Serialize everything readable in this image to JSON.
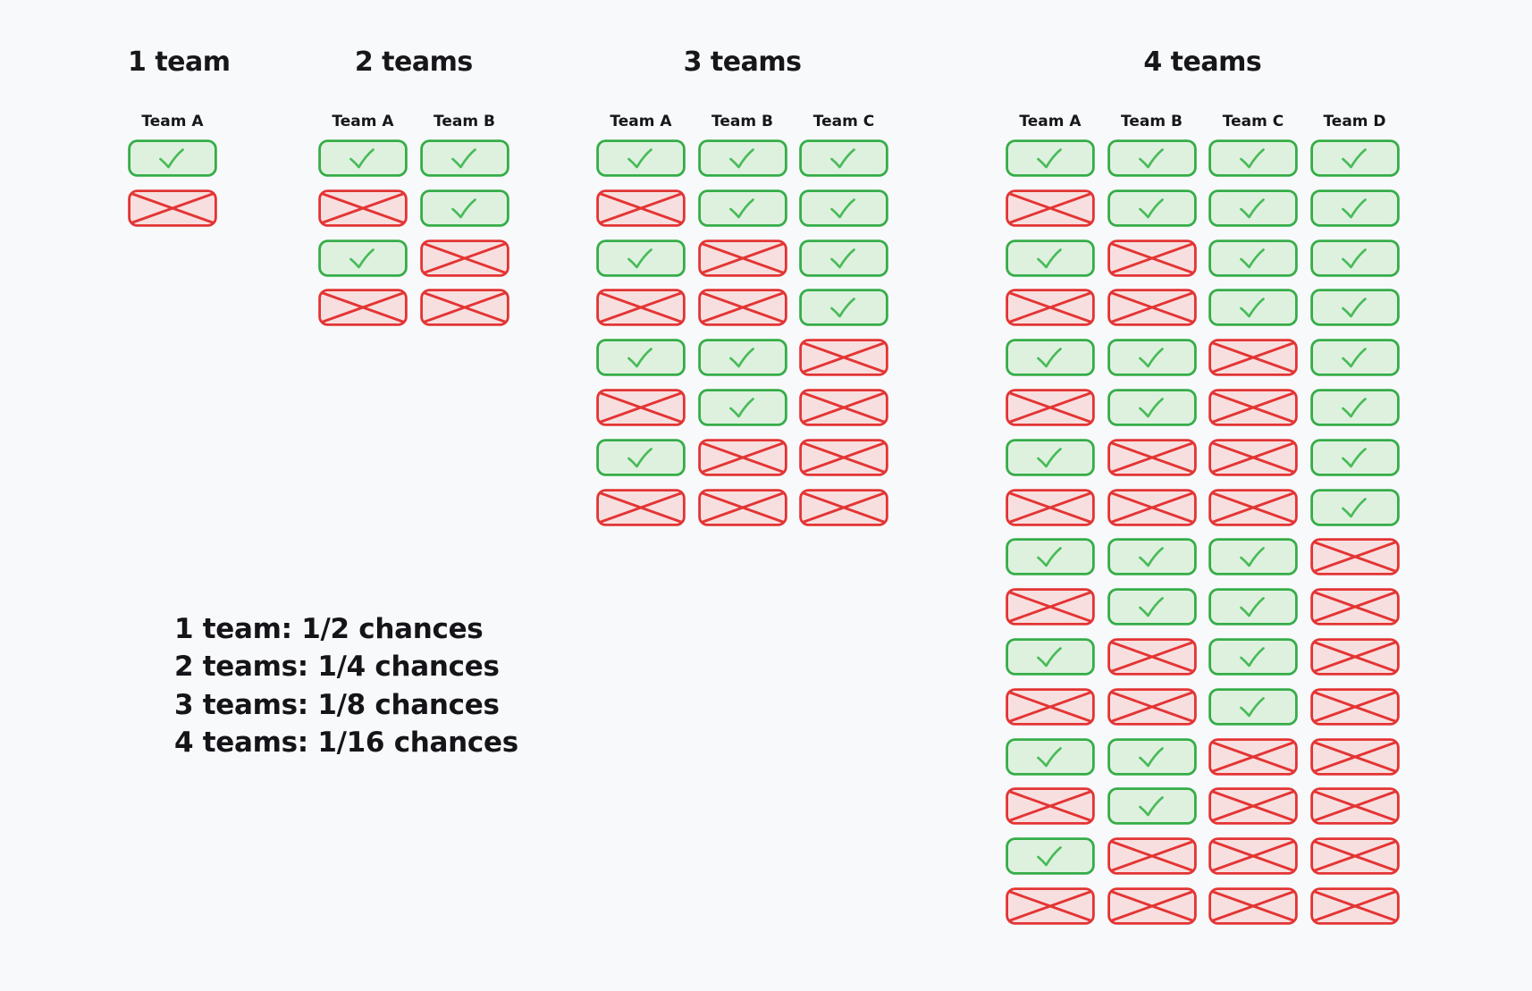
{
  "diagram": {
    "background": "#f8f9fb",
    "text_color": "#17171b"
  },
  "colors": {
    "win_border": "#35ad48",
    "win_fill": "#def1de",
    "win_check": "#48bb59",
    "lose_border": "#e33434",
    "lose_fill": "#f8dfdf"
  },
  "groups": [
    {
      "title": "1 team",
      "teams": [
        "Team A"
      ],
      "rows": [
        [
          "win"
        ],
        [
          "lose"
        ]
      ]
    },
    {
      "title": "2 teams",
      "teams": [
        "Team A",
        "Team B"
      ],
      "rows": [
        [
          "win",
          "win"
        ],
        [
          "lose",
          "win"
        ],
        [
          "win",
          "lose"
        ],
        [
          "lose",
          "lose"
        ]
      ]
    },
    {
      "title": "3 teams",
      "teams": [
        "Team A",
        "Team B",
        "Team C"
      ],
      "rows": [
        [
          "win",
          "win",
          "win"
        ],
        [
          "lose",
          "win",
          "win"
        ],
        [
          "win",
          "lose",
          "win"
        ],
        [
          "lose",
          "lose",
          "win"
        ],
        [
          "win",
          "win",
          "lose"
        ],
        [
          "lose",
          "win",
          "lose"
        ],
        [
          "win",
          "lose",
          "lose"
        ],
        [
          "lose",
          "lose",
          "lose"
        ]
      ]
    },
    {
      "title": "4 teams",
      "teams": [
        "Team A",
        "Team B",
        "Team C",
        "Team D"
      ],
      "rows": [
        [
          "win",
          "win",
          "win",
          "win"
        ],
        [
          "lose",
          "win",
          "win",
          "win"
        ],
        [
          "win",
          "lose",
          "win",
          "win"
        ],
        [
          "lose",
          "lose",
          "win",
          "win"
        ],
        [
          "win",
          "win",
          "lose",
          "win"
        ],
        [
          "lose",
          "win",
          "lose",
          "win"
        ],
        [
          "win",
          "lose",
          "lose",
          "win"
        ],
        [
          "lose",
          "lose",
          "lose",
          "win"
        ],
        [
          "win",
          "win",
          "win",
          "lose"
        ],
        [
          "lose",
          "win",
          "win",
          "lose"
        ],
        [
          "win",
          "lose",
          "win",
          "lose"
        ],
        [
          "lose",
          "lose",
          "win",
          "lose"
        ],
        [
          "win",
          "win",
          "lose",
          "lose"
        ],
        [
          "lose",
          "win",
          "lose",
          "lose"
        ],
        [
          "win",
          "lose",
          "lose",
          "lose"
        ],
        [
          "lose",
          "lose",
          "lose",
          "lose"
        ]
      ]
    }
  ],
  "legend": {
    "lines": [
      "1 team: 1/2 chances",
      "2 teams: 1/4 chances",
      "3 teams: 1/8 chances",
      "4 teams: 1/16 chances"
    ]
  }
}
